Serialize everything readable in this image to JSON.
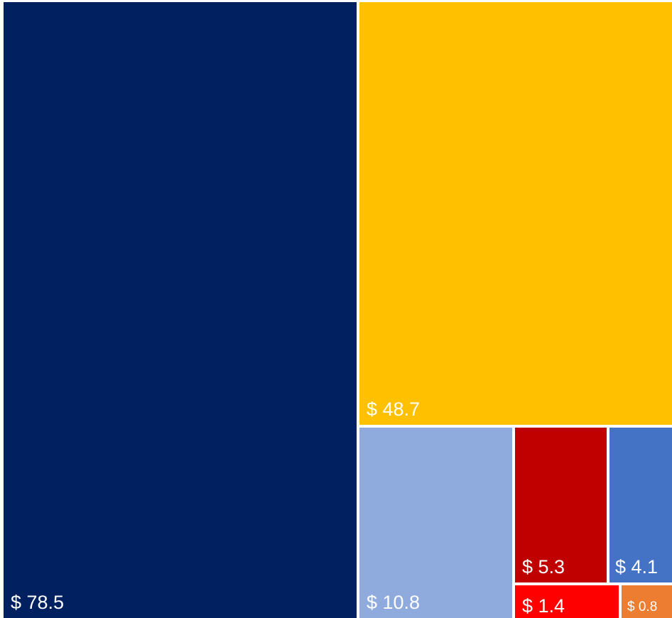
{
  "chart_data": {
    "type": "treemap",
    "title": "",
    "items": [
      {
        "value": 78.5,
        "label": "$ 78.5",
        "color": "#002060"
      },
      {
        "value": 48.7,
        "label": "$ 48.7",
        "color": "#FFC000"
      },
      {
        "value": 10.8,
        "label": "$ 10.8",
        "color": "#8FAADC"
      },
      {
        "value": 5.3,
        "label": "$ 5.3",
        "color": "#C00000"
      },
      {
        "value": 4.1,
        "label": "$ 4.1",
        "color": "#4472C4"
      },
      {
        "value": 1.4,
        "label": "$ 1.4",
        "color": "#FF0000"
      },
      {
        "value": 0.8,
        "label": "$ 0.8",
        "color": "#ED7D31"
      }
    ],
    "label_color": "#FFFFFF"
  }
}
